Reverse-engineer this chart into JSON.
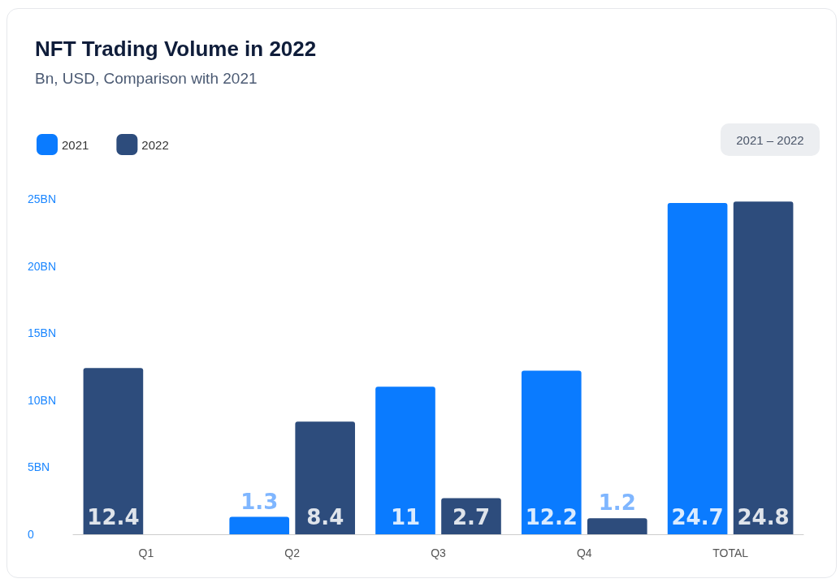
{
  "chart_data": {
    "type": "bar",
    "title": "NFT Trading Volume in 2022",
    "subtitle": "Bn, USD, Comparison with 2021",
    "annotations": [
      "2021 – 2022"
    ],
    "categories": [
      "Q1",
      "Q2",
      "Q3",
      "Q4",
      "TOTAL"
    ],
    "series": [
      {
        "name": "2021",
        "color": "#0a7bff",
        "colors": [
          "#2d4c7c",
          "#0a7bff",
          "#0a7bff",
          "#0a7bff",
          "#0a7bff"
        ],
        "values": [
          12.4,
          1.3,
          11,
          12.2,
          24.7
        ]
      },
      {
        "name": "2022",
        "color": "#2d4c7c",
        "values": [
          null,
          8.4,
          2.7,
          1.2,
          24.8
        ]
      }
    ],
    "ylim": [
      0,
      25
    ],
    "yticks": [
      0,
      {
        "value": 5,
        "label": "5BN"
      },
      {
        "value": 10,
        "label": "10BN"
      },
      {
        "value": 15,
        "label": "15BN"
      },
      {
        "value": 20,
        "label": "20BN"
      },
      {
        "value": 25,
        "label": "25BN"
      }
    ],
    "data_labels": true,
    "grid": false,
    "legend": "top left"
  }
}
